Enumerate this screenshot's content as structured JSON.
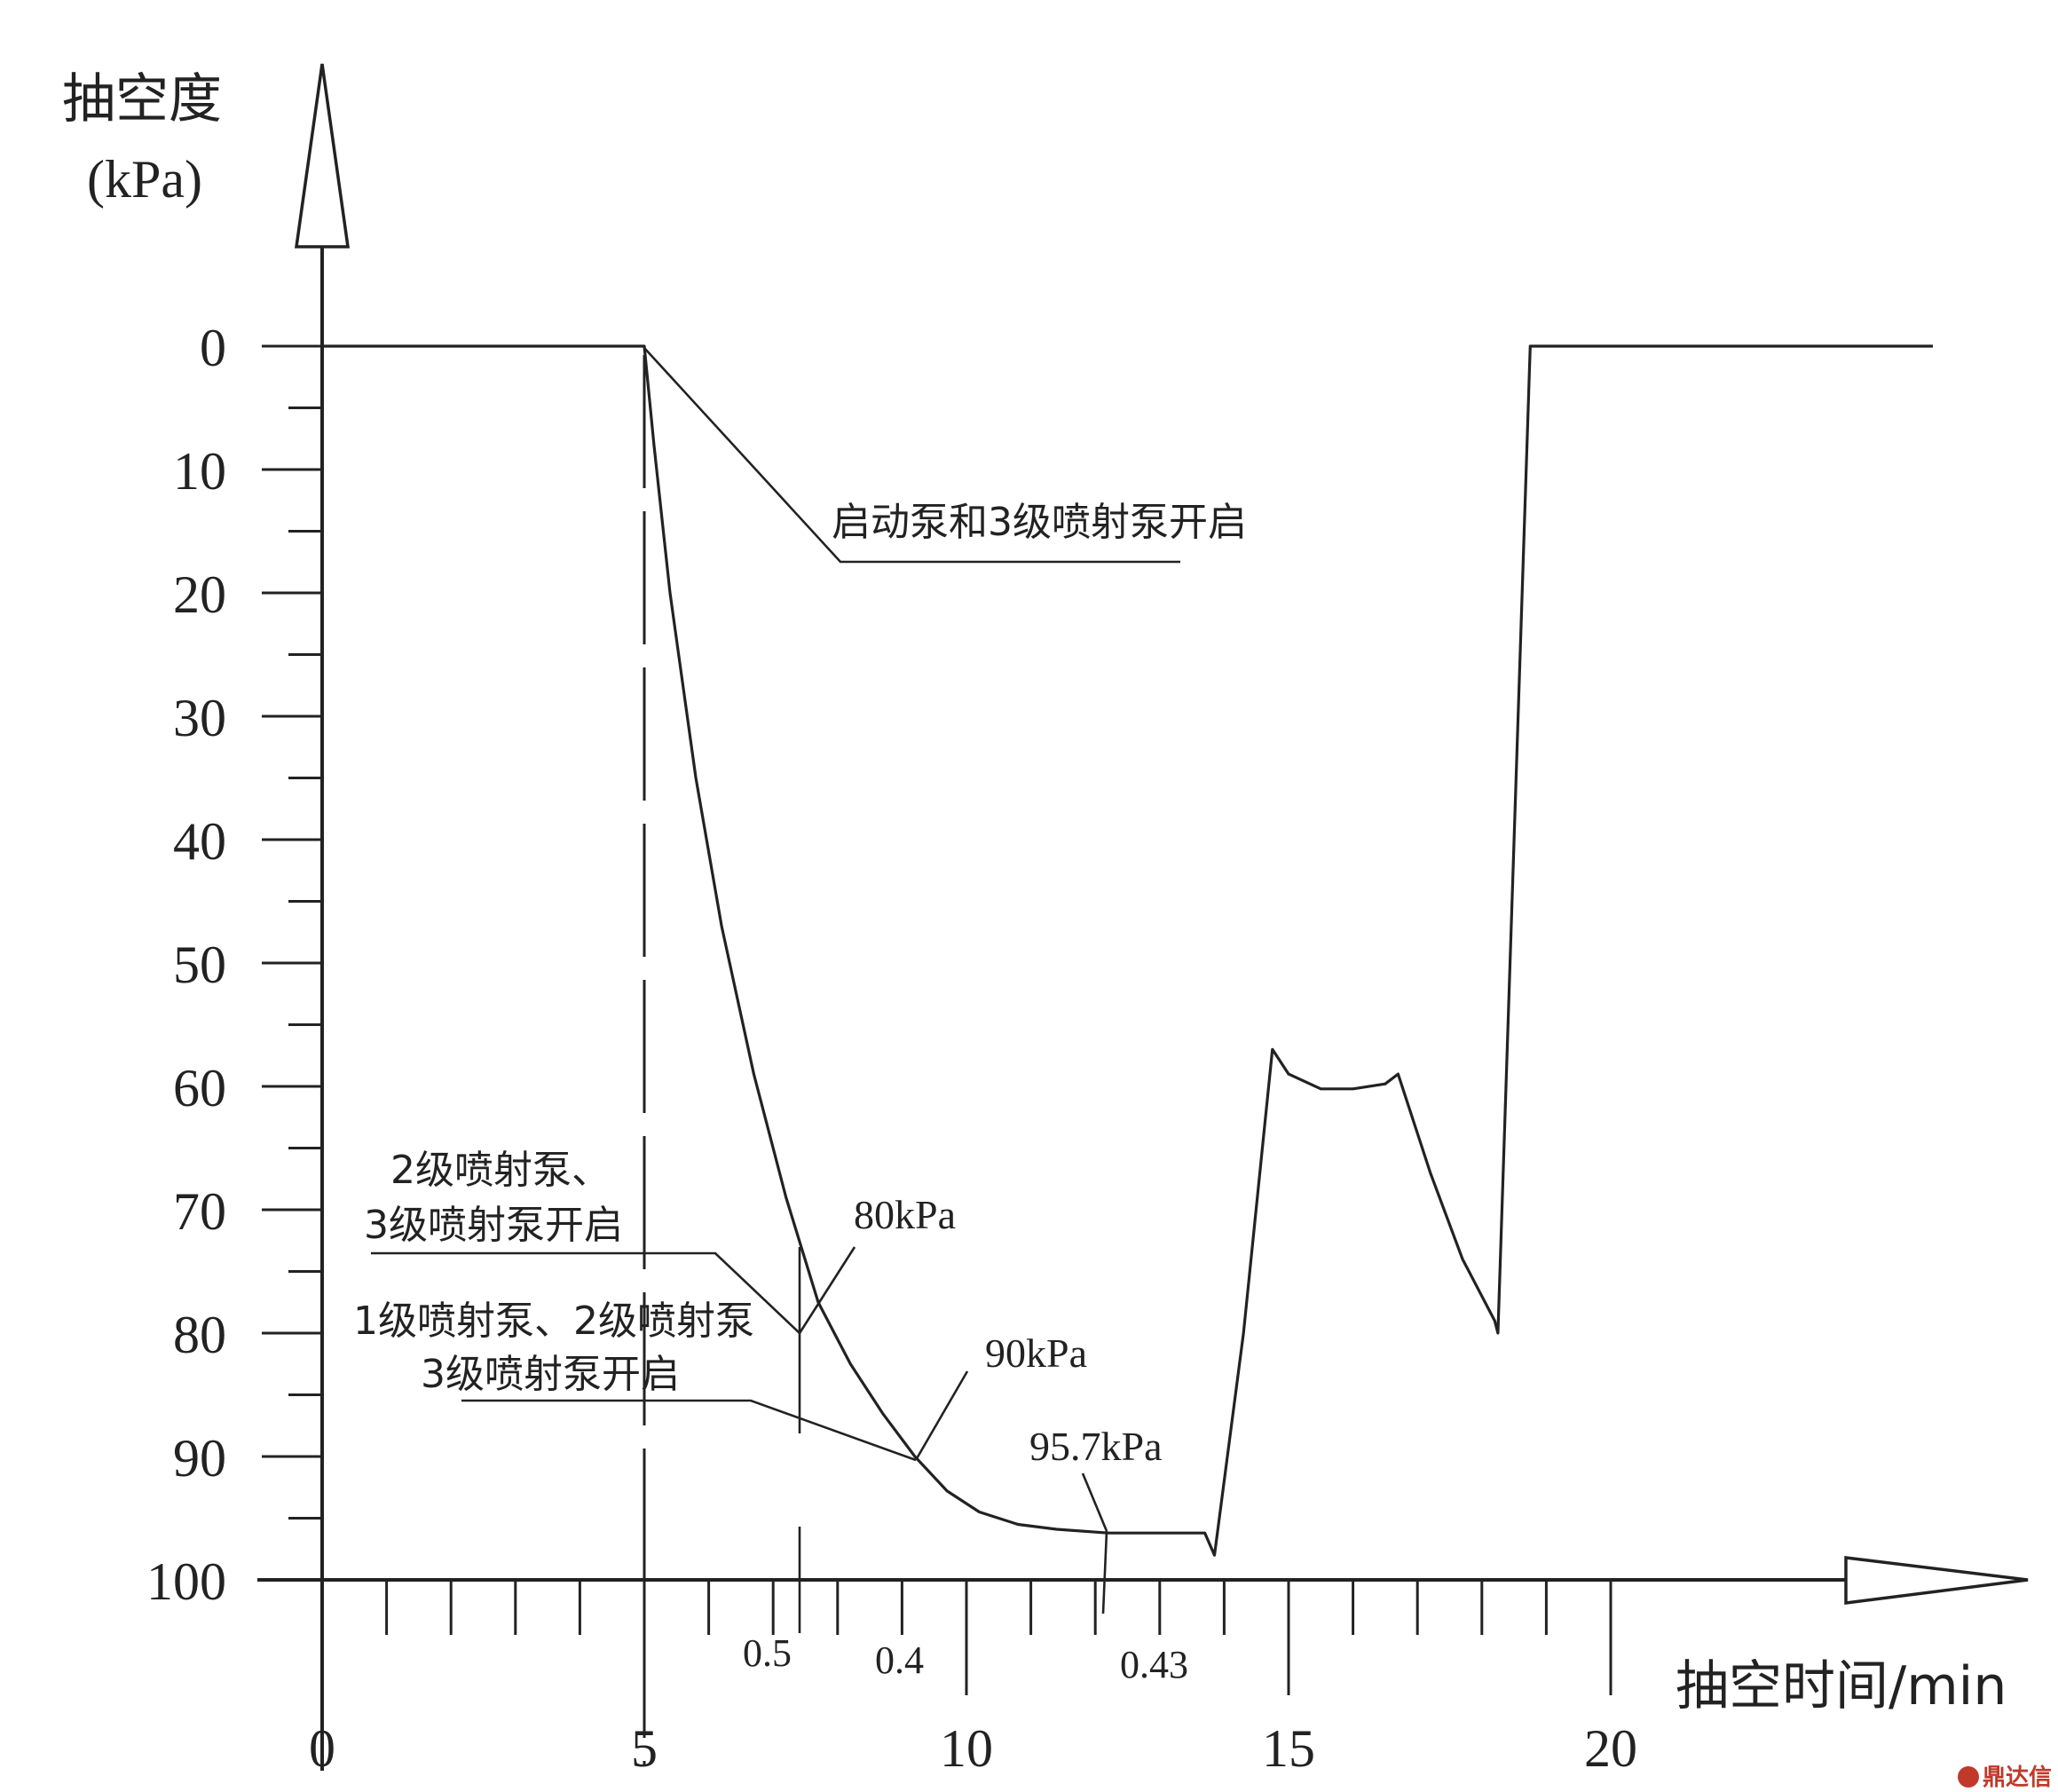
{
  "chart_data": {
    "type": "line",
    "title": "",
    "ylabel_line1": "抽空度",
    "ylabel_line2": "(kPa)",
    "xlabel": "抽空时间/min",
    "y_ticks": [
      0,
      10,
      20,
      30,
      40,
      50,
      60,
      70,
      80,
      90,
      100
    ],
    "y_tick_labels": [
      "0",
      "10",
      "20",
      "30",
      "40",
      "50",
      "60",
      "70",
      "80",
      "90",
      "100"
    ],
    "x_ticks": [
      0,
      5,
      10,
      15,
      20
    ],
    "x_tick_labels": [
      "0",
      "5",
      "10",
      "15",
      "20"
    ],
    "xlim": [
      0,
      26
    ],
    "ylim": [
      0,
      100
    ],
    "y_inverted": true,
    "series": [
      {
        "x": [
          0,
          5,
          5.15,
          5.4,
          5.8,
          6.2,
          6.7,
          7.2,
          7.7,
          8.2,
          8.7,
          9.2,
          9.7,
          10.2,
          10.8,
          11.4,
          12.2,
          13.0,
          13.7,
          13.85,
          14.3,
          14.75,
          15.0,
          15.5,
          16.0,
          16.5,
          16.7,
          17.2,
          17.7,
          18.2,
          18.25,
          18.5,
          18.75,
          19.5,
          20.5,
          22.0,
          24.0,
          25.0
        ],
        "y": [
          0,
          0,
          8,
          20,
          35,
          47,
          59,
          69,
          77.5,
          82.5,
          86.5,
          90,
          92.8,
          94.5,
          95.5,
          95.9,
          96.2,
          96.2,
          96.2,
          98,
          80,
          57,
          59,
          60.2,
          60.2,
          59.8,
          59,
          67,
          74,
          79,
          80,
          40,
          0,
          0,
          0,
          0,
          0,
          0
        ]
      }
    ],
    "annotations": [
      {
        "text": "启动泵和3级喷射泵开启"
      },
      {
        "text_line1": "2级喷射泵、",
        "text_line2": "3级喷射泵开启"
      },
      {
        "text_line1": "1级喷射泵、2级喷射泵",
        "text_line2": "3级喷射泵开启"
      },
      {
        "text": "80kPa"
      },
      {
        "text": "90kPa"
      },
      {
        "text": "95.7kPa"
      }
    ],
    "interval_labels": [
      "0.5",
      "0.4",
      "0.43"
    ],
    "grid": false,
    "legend": "none"
  },
  "watermark": "鼎达信"
}
